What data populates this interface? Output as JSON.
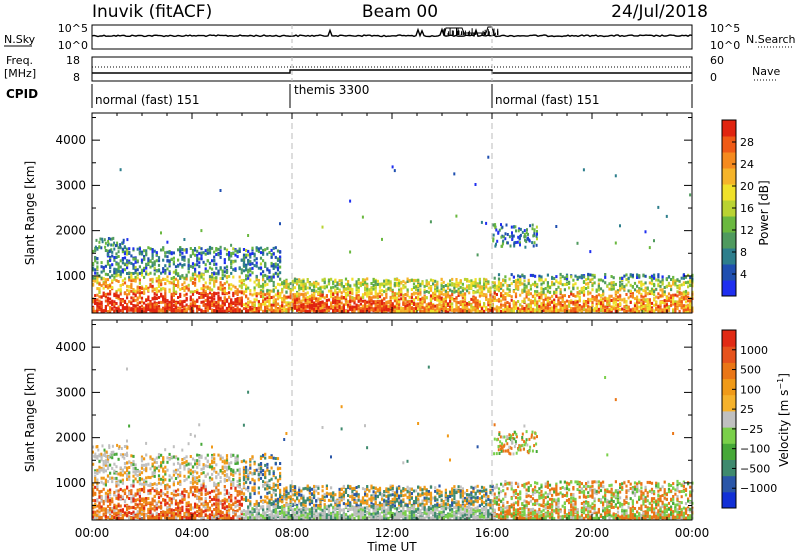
{
  "header": {
    "station": "Inuvik (fitACF)",
    "beam": "Beam 00",
    "date": "24/Jul/2018"
  },
  "top_panels": {
    "nsky": {
      "label": "N.Sky",
      "ticks": [
        "10^5",
        "10^0"
      ]
    },
    "nsearch": {
      "label": "N.Search",
      "ticks": [
        "10^5",
        "10^0"
      ]
    },
    "freq": {
      "label": "Freq.",
      "unit": "[MHz]",
      "ticks": [
        "18",
        "8"
      ]
    },
    "nave": {
      "label": "Nave",
      "ticks": [
        "60",
        "0"
      ]
    },
    "cpid": {
      "label": "CPID",
      "segments": [
        {
          "label": "normal (fast) 151",
          "start_hour": 0
        },
        {
          "label": "themis 3300",
          "start_hour": 8
        },
        {
          "label": "normal (fast) 151",
          "start_hour": 16
        }
      ]
    }
  },
  "chart_data": [
    {
      "type": "heatmap",
      "name": "power",
      "ylabel": "Slant Range [km]",
      "yticks": [
        1000,
        2000,
        3000,
        4000
      ],
      "ylim": [
        180,
        4600
      ],
      "xlim": [
        0,
        24
      ],
      "colorbar": {
        "label": "Power [dB]",
        "ticks": [
          "4",
          "8",
          "12",
          "16",
          "20",
          "24",
          "28"
        ],
        "colors": [
          "#1f2ff0",
          "#1f4fb0",
          "#2d7e8c",
          "#4f9a5e",
          "#6ab83f",
          "#b9d332",
          "#f0e12a",
          "#f5b42a",
          "#f58a1e",
          "#ef5a16",
          "#e02410"
        ]
      }
    },
    {
      "type": "heatmap",
      "name": "velocity",
      "ylabel": "Slant Range [km]",
      "yticks": [
        1000,
        2000,
        3000,
        4000
      ],
      "ylim": [
        180,
        4600
      ],
      "xlim": [
        0,
        24
      ],
      "xlabel": "Time UT",
      "xticks": [
        "00:00",
        "04:00",
        "08:00",
        "12:00",
        "16:00",
        "20:00",
        "00:00"
      ],
      "colorbar": {
        "label": "Velocity [m s^-1]",
        "ticks": [
          "1000",
          "500",
          "100",
          "25",
          "−25",
          "−100",
          "−500",
          "−1000"
        ],
        "colors": [
          "#1230d6",
          "#2a56a8",
          "#3f8a6e",
          "#46a838",
          "#7ad04a",
          "#c0c0c0",
          "#f5b22c",
          "#f09a18",
          "#ea7616",
          "#e6521c",
          "#e12a14"
        ]
      }
    }
  ]
}
